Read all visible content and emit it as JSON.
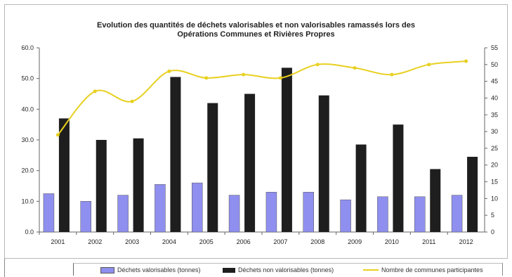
{
  "chart_data": {
    "type": "bar",
    "title_lines": [
      "Evolution des quantités de déchets valorisables et non valorisables ramassés lors des",
      "Opérations Communes et Rivières Propres"
    ],
    "categories": [
      "2001",
      "2002",
      "2003",
      "2004",
      "2005",
      "2006",
      "2007",
      "2008",
      "2009",
      "2010",
      "2011",
      "2012"
    ],
    "y_left": {
      "min": 0,
      "max": 60,
      "ticks": [
        "0.0",
        "10.0",
        "20.0",
        "30.0",
        "40.0",
        "50.0",
        "60.0"
      ]
    },
    "y_right": {
      "min": 0,
      "max": 55,
      "ticks": [
        "0",
        "5",
        "10",
        "15",
        "20",
        "25",
        "30",
        "35",
        "40",
        "45",
        "50",
        "55"
      ]
    },
    "grid": false,
    "legend_position": "bottom",
    "series": [
      {
        "name": "Déchets valorisables (tonnes)",
        "kind": "bar",
        "axis": "left",
        "color": "#8f8fef",
        "values": [
          12.5,
          10.0,
          12.0,
          15.5,
          16.0,
          12.0,
          13.0,
          13.0,
          10.5,
          11.5,
          11.5,
          12.0
        ]
      },
      {
        "name": "Déchets non valorisables (tonnes)",
        "kind": "bar",
        "axis": "left",
        "color": "#1e1e1e",
        "values": [
          37.0,
          30.0,
          30.5,
          50.5,
          42.0,
          45.0,
          53.5,
          44.5,
          28.5,
          35.0,
          20.5,
          24.5
        ]
      },
      {
        "name": "Nombre de communes participantes",
        "kind": "line",
        "axis": "right",
        "color": "#e8d020",
        "values": [
          29,
          42,
          39,
          48,
          46,
          47,
          46,
          50,
          49,
          47,
          50,
          51
        ]
      }
    ]
  }
}
